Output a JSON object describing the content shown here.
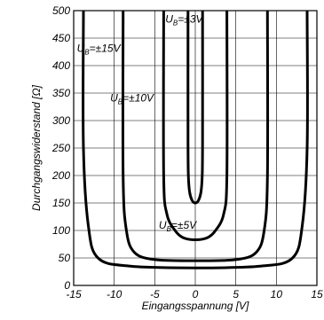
{
  "chart_data": {
    "type": "line",
    "title": "",
    "xlabel": "Eingangsspannung [V]",
    "ylabel": "Durchgangswiderstand [Ω]",
    "xlim": [
      -15,
      15
    ],
    "ylim": [
      0,
      500
    ],
    "x_ticks": [
      -15,
      -10,
      -5,
      0,
      5,
      10,
      15
    ],
    "y_ticks": [
      0,
      50,
      100,
      150,
      200,
      250,
      300,
      350,
      400,
      450,
      500
    ],
    "x_tick_labels": [
      "-15",
      "-10",
      "-5",
      "0",
      "5",
      "10",
      "15"
    ],
    "y_tick_labels": [
      "0",
      "50",
      "100",
      "150",
      "200",
      "250",
      "300",
      "350",
      "400",
      "450",
      "500"
    ],
    "grid": true,
    "series": [
      {
        "label_base": "U",
        "label_sub": "B",
        "label_rest": "=±3V",
        "x": [
          -0.9,
          -0.9,
          -0.85,
          -0.7,
          -0.4,
          0,
          0.4,
          0.7,
          0.85,
          0.9,
          0.9
        ],
        "y": [
          500,
          260,
          200,
          170,
          155,
          150,
          155,
          170,
          200,
          260,
          500
        ]
      },
      {
        "label_base": "U",
        "label_sub": "B",
        "label_rest": "=±5V",
        "x": [
          -3.9,
          -3.9,
          -3.5,
          -2.5,
          -1.5,
          0,
          1.5,
          2.5,
          3.5,
          3.9,
          3.9
        ],
        "y": [
          500,
          200,
          130,
          100,
          87,
          83,
          87,
          100,
          130,
          200,
          500
        ]
      },
      {
        "label_base": "U",
        "label_sub": "B",
        "label_rest": "=±10V",
        "x": [
          -8.9,
          -8.9,
          -8.5,
          -7.5,
          -5,
          0,
          5,
          7.5,
          8.5,
          8.9,
          8.9
        ],
        "y": [
          500,
          200,
          100,
          60,
          47,
          45,
          47,
          60,
          100,
          200,
          500
        ]
      },
      {
        "label_base": "U",
        "label_sub": "B",
        "label_rest": "=±15V",
        "x": [
          -13.8,
          -13.8,
          -13.2,
          -12,
          -8,
          0,
          8,
          12,
          13.2,
          13.8,
          13.8
        ],
        "y": [
          500,
          250,
          110,
          50,
          35,
          32,
          35,
          50,
          110,
          250,
          500
        ]
      }
    ],
    "annotations": [
      {
        "series": 0,
        "x": -3.7,
        "y": 478
      },
      {
        "series": 1,
        "x": -4.5,
        "y": 103
      },
      {
        "series": 2,
        "x": -10.5,
        "y": 335
      },
      {
        "series": 3,
        "x": -14.6,
        "y": 425
      }
    ]
  }
}
